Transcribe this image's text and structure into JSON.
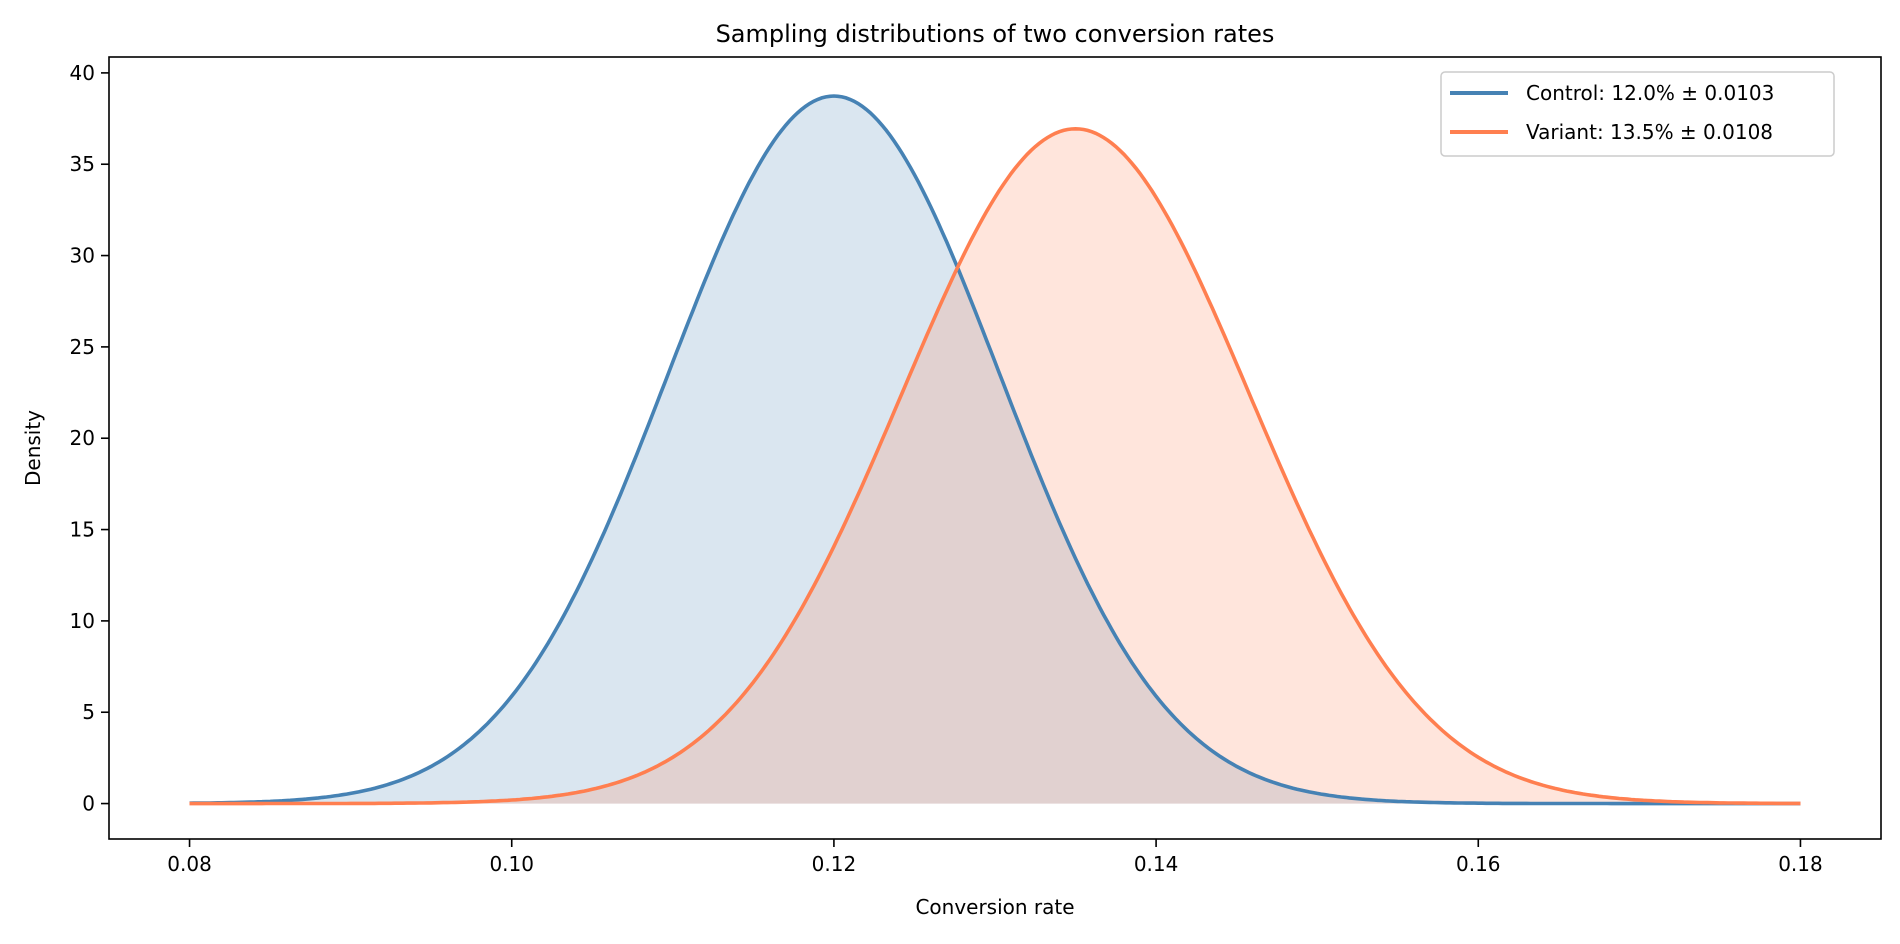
{
  "chart_data": {
    "type": "line",
    "title": "Sampling distributions of two conversion rates",
    "xlabel": "Conversion rate",
    "ylabel": "Density",
    "xlim": [
      0.075,
      0.185
    ],
    "ylim": [
      -1.94,
      40.87
    ],
    "xticks": [
      0.08,
      0.1,
      0.12,
      0.14,
      0.16,
      0.18
    ],
    "xtick_labels": [
      "0.08",
      "0.10",
      "0.12",
      "0.14",
      "0.16",
      "0.18"
    ],
    "yticks": [
      0,
      5,
      10,
      15,
      20,
      25,
      30,
      35,
      40
    ],
    "ytick_labels": [
      "0",
      "5",
      "10",
      "15",
      "20",
      "25",
      "30",
      "35",
      "40"
    ],
    "x_range": [
      0.08,
      0.18
    ],
    "grid": false,
    "legend_placement": "top-right",
    "series": [
      {
        "name": "Control: 12.0% ± 0.0103",
        "distribution": "normal",
        "mean": 0.12,
        "sd": 0.0103,
        "color": "#4682b4",
        "fill_opacity": 0.2
      },
      {
        "name": "Variant: 13.5% ± 0.0108",
        "distribution": "normal",
        "mean": 0.135,
        "sd": 0.0108,
        "color": "#ff7f50",
        "fill_opacity": 0.2
      }
    ]
  }
}
